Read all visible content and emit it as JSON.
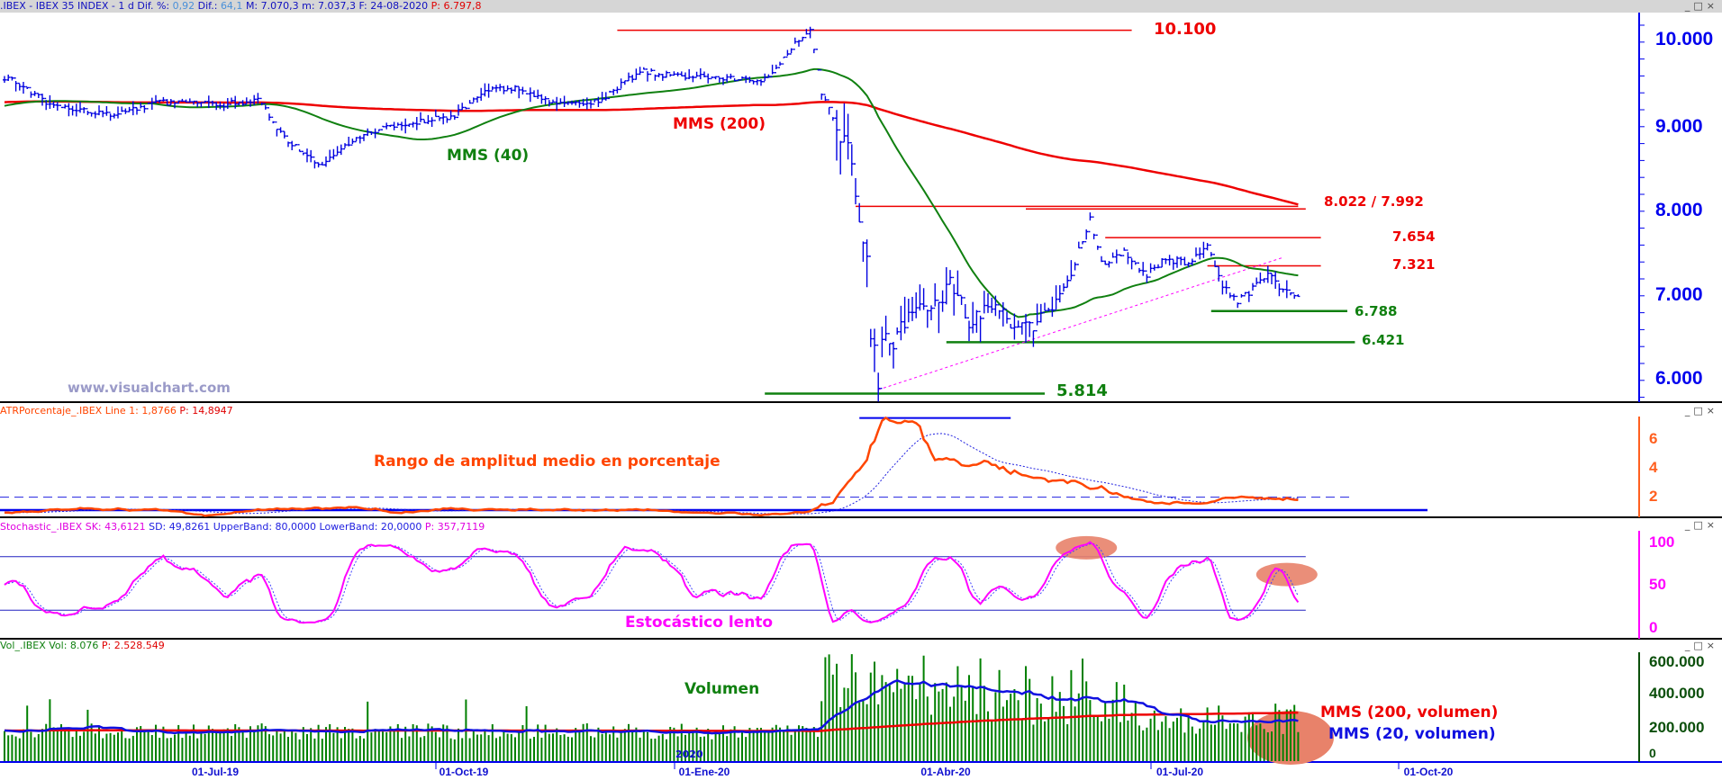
{
  "header": {
    "symbol": ".IBEX - IBEX 35 INDEX -  1 d",
    "dif_pct_label": "Dif. %:",
    "dif_pct": "0,92",
    "dif_label": "Dif.:",
    "dif": "64,1",
    "max": "M: 7.070,3",
    "min": "m: 7.037,3",
    "date": "F: 24-08-2020",
    "last": "P: 6.797,8"
  },
  "window_controls": {
    "minimize": "_",
    "maximize": "□",
    "close": "×"
  },
  "watermark": "www.visualchart.com",
  "panels": {
    "atr": {
      "name": "ATRPorcentaje_.IBEX",
      "line": "Line 1: 1,8766",
      "p": "P: 14,8947",
      "annotation": "Rango de amplitud medio en porcentaje"
    },
    "stoch": {
      "name": "Stochastic_.IBEX",
      "sk": "SK: 43,6121",
      "sd": "SD: 49,8261",
      "upper": "UpperBand: 80,0000",
      "lower": "LowerBand: 20,0000",
      "p": "P: 357,7119",
      "annotation": "Estocástico lento"
    },
    "vol": {
      "name": "Vol_.IBEX",
      "vol": "Vol: 8.076",
      "p": "P: 2.528.549",
      "annotation": "Volumen",
      "mms200": "MMS (200, volumen)",
      "mms20": "MMS (20, volumen)",
      "year_marker": "2020"
    }
  },
  "colors": {
    "price": "#0000e0",
    "mms40": "#008000",
    "mms200": "#ee0000",
    "atr": "#ff4500",
    "stoch": "#ff00ff",
    "volume": "#008000",
    "highlight": "#e8826a"
  },
  "chart_data": [
    {
      "type": "line",
      "title": "IBEX 35 INDEX (daily bars)",
      "x_unit": "trading-day index",
      "anchors": [
        [
          1,
          9547
        ],
        [
          12,
          9224
        ],
        [
          29,
          9094
        ],
        [
          41,
          9250
        ],
        [
          58,
          9224
        ],
        [
          67,
          9288
        ],
        [
          74,
          8835
        ],
        [
          83,
          8512
        ],
        [
          96,
          8900
        ],
        [
          110,
          9030
        ],
        [
          119,
          9094
        ],
        [
          128,
          9418
        ],
        [
          136,
          9418
        ],
        [
          145,
          9224
        ],
        [
          157,
          9262
        ],
        [
          168,
          9612
        ],
        [
          180,
          9547
        ],
        [
          192,
          9547
        ],
        [
          200,
          9482
        ],
        [
          209,
          9935
        ],
        [
          213,
          10083
        ],
        [
          216,
          9353
        ],
        [
          221,
          8900
        ],
        [
          224,
          8512
        ],
        [
          226,
          7930
        ],
        [
          228,
          7477
        ],
        [
          229,
          6571
        ],
        [
          231,
          5990
        ],
        [
          232,
          6571
        ],
        [
          235,
          6312
        ],
        [
          238,
          6700
        ],
        [
          244,
          6830
        ],
        [
          250,
          7088
        ],
        [
          255,
          6700
        ],
        [
          261,
          6894
        ],
        [
          266,
          6635
        ],
        [
          271,
          6571
        ],
        [
          279,
          6959
        ],
        [
          283,
          7347
        ],
        [
          287,
          7865
        ],
        [
          290,
          7347
        ],
        [
          296,
          7477
        ],
        [
          302,
          7217
        ],
        [
          307,
          7412
        ],
        [
          313,
          7347
        ],
        [
          318,
          7541
        ],
        [
          322,
          7088
        ],
        [
          326,
          6894
        ],
        [
          331,
          7088
        ],
        [
          334,
          7217
        ],
        [
          338,
          7023
        ],
        [
          342,
          6950
        ]
      ],
      "moving_averages": [
        {
          "name": "MMS (40)",
          "period": 40
        },
        {
          "name": "MMS (200)",
          "period": 200
        }
      ],
      "levels": [
        {
          "label": "10.100",
          "value": 10100,
          "from": 162,
          "to": 298,
          "color": "red"
        },
        {
          "label": "8.022 / 7.992",
          "value": 8022,
          "from": 225,
          "to": 342,
          "color": "red"
        },
        {
          "label": "",
          "value": 7992,
          "from": 270,
          "to": 344,
          "color": "red"
        },
        {
          "label": "7.654",
          "value": 7654,
          "from": 291,
          "to": 348,
          "color": "red"
        },
        {
          "label": "7.321",
          "value": 7321,
          "from": 318,
          "to": 348,
          "color": "red"
        },
        {
          "label": "6.788",
          "value": 6788,
          "from": 319,
          "to": 355,
          "color": "green"
        },
        {
          "label": "6.421",
          "value": 6421,
          "from": 249,
          "to": 357,
          "color": "green"
        },
        {
          "label": "5.814",
          "value": 5814,
          "from": 201,
          "to": 275,
          "color": "green"
        }
      ],
      "trendline": {
        "from": [
          231,
          5860
        ],
        "to": [
          338,
          7420
        ]
      },
      "ma_labels": {
        "mms40": "MMS (40)",
        "mms200": "MMS (200)"
      },
      "y_ticks": [
        "10.000",
        "9.000",
        "8.000",
        "7.000",
        "6.000"
      ],
      "y_tick_values": [
        10000,
        9000,
        8000,
        7000,
        6000
      ],
      "ylim": [
        5700,
        10400
      ],
      "x_ticks": [
        "01-Jul-19",
        "01-Oct-19",
        "01-Ene-20",
        "01-Abr-20",
        "01-Jul-20",
        "01-Oct-20"
      ]
    },
    {
      "type": "line",
      "title": "ATR porcentaje",
      "y_ticks": [
        "6",
        "4",
        "2"
      ],
      "y_tick_values": [
        6,
        4,
        2
      ],
      "ylim": [
        0,
        8
      ],
      "reference": 1.9,
      "baseline": 1.0,
      "peak_line": {
        "value": 7.4,
        "from": 226,
        "to": 266
      }
    },
    {
      "type": "line",
      "title": "Estocástico lento",
      "y_ticks": [
        "100",
        "50",
        "0"
      ],
      "y_tick_values": [
        100,
        50,
        0
      ],
      "ylim": [
        -5,
        105
      ],
      "bands": [
        80,
        20
      ],
      "highlights": [
        {
          "x": 286,
          "y": 90
        },
        {
          "x": 339,
          "y": 60
        }
      ]
    },
    {
      "type": "bar",
      "title": "Volumen",
      "y_ticks": [
        "600.000",
        "400.000",
        "200.000",
        "0"
      ],
      "y_tick_values": [
        600000,
        400000,
        200000,
        0
      ],
      "ylim": [
        0,
        620000
      ],
      "moving_averages": [
        {
          "name": "MMS (20, volumen)",
          "period": 20
        },
        {
          "name": "MMS (200, volumen)",
          "period": 200
        }
      ],
      "highlight": {
        "x": 340,
        "y": 130000
      }
    }
  ]
}
